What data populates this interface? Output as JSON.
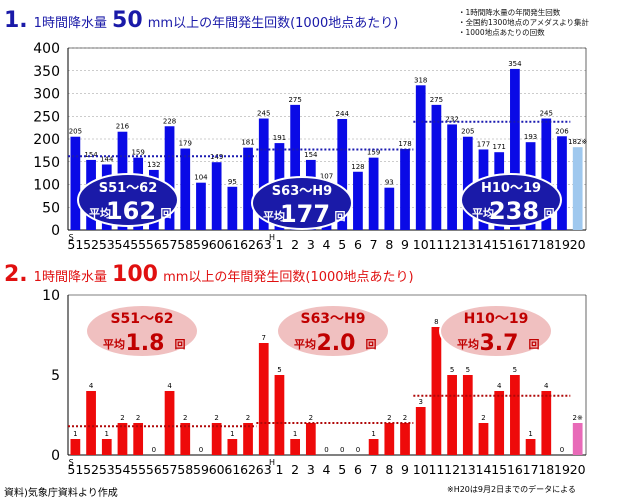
{
  "titles": {
    "chart1": {
      "num": "1.",
      "pre": "1時間降水量",
      "big": "50",
      "post": "mm以上の年間発生回数(1000地点あたり)"
    },
    "chart2": {
      "num": "2.",
      "pre": "1時間降水量",
      "big": "100",
      "post": "mm以上の年間発生回数(1000地点あたり)"
    }
  },
  "legend_notes": [
    "・1時間降水量の年間発生回数",
    "・全国約1300地点のアメダスより集計",
    "・1000地点あたりの回数"
  ],
  "source": "資料)気象庁資料より作成",
  "footnote": "※H20は9月2日までのデータによる",
  "era_marks": {
    "showa": "S",
    "heisei": "H"
  },
  "colors": {
    "chart1_bar": "#0a0ae6",
    "chart1_last": "#9fc8ee",
    "chart1_avg": "#1a1ab0",
    "chart1_bubble": "#1a1aa8",
    "chart2_bar": "#ee0a0a",
    "chart2_last": "#e86ab8",
    "chart2_avg": "#b00808",
    "chart2_bubble": "#f0c0c0"
  },
  "chart_data": [
    {
      "type": "bar",
      "title": "1時間降水量50mm以上の年間発生回数(1000地点あたり)",
      "categories": [
        "51",
        "52",
        "53",
        "54",
        "55",
        "56",
        "57",
        "58",
        "59",
        "60",
        "61",
        "62",
        "63",
        "1",
        "2",
        "3",
        "4",
        "5",
        "6",
        "7",
        "8",
        "9",
        "10",
        "11",
        "12",
        "13",
        "14",
        "15",
        "16",
        "17",
        "18",
        "19",
        "20"
      ],
      "values": [
        205,
        154,
        144,
        216,
        159,
        132,
        228,
        179,
        104,
        149,
        95,
        181,
        245,
        191,
        275,
        154,
        107,
        244,
        128,
        159,
        93,
        178,
        318,
        275,
        232,
        205,
        177,
        171,
        354,
        193,
        245,
        206,
        182
      ],
      "value_labels": [
        "205",
        "154",
        "144",
        "216",
        "159",
        "132",
        "228",
        "179",
        "104",
        "149",
        "95",
        "181",
        "245",
        "191",
        "275",
        "154",
        "107",
        "244",
        "128",
        "159",
        "93",
        "178",
        "318",
        "275",
        "232",
        "205",
        "177",
        "171",
        "354",
        "193",
        "245",
        "206",
        "182※"
      ],
      "ylim": [
        0,
        400
      ],
      "yticks": [
        "0",
        "50",
        "100",
        "150",
        "200",
        "250",
        "300",
        "350",
        "400"
      ],
      "grid": true,
      "averages": [
        {
          "period": "S51～62",
          "label": "平均",
          "value": "162",
          "unit": "回"
        },
        {
          "period": "S63～H9",
          "label": "平均",
          "value": "177",
          "unit": "回"
        },
        {
          "period": "H10～19",
          "label": "平均",
          "value": "238",
          "unit": "回"
        }
      ]
    },
    {
      "type": "bar",
      "title": "1時間降水量100mm以上の年間発生回数(1000地点あたり)",
      "categories": [
        "51",
        "52",
        "53",
        "54",
        "55",
        "56",
        "57",
        "58",
        "59",
        "60",
        "61",
        "62",
        "63",
        "1",
        "2",
        "3",
        "4",
        "5",
        "6",
        "7",
        "8",
        "9",
        "10",
        "11",
        "12",
        "13",
        "14",
        "15",
        "16",
        "17",
        "18",
        "19",
        "20"
      ],
      "values": [
        1,
        4,
        1,
        2,
        2,
        0,
        4,
        2,
        0,
        2,
        1,
        2,
        7,
        5,
        1,
        2,
        0,
        0,
        0,
        1,
        2,
        2,
        3,
        8,
        5,
        5,
        2,
        4,
        5,
        1,
        4,
        0,
        2
      ],
      "value_labels": [
        "1",
        "4",
        "1",
        "2",
        "2",
        "0",
        "4",
        "2",
        "0",
        "2",
        "1",
        "2",
        "7",
        "5",
        "1",
        "2",
        "0",
        "0",
        "0",
        "1",
        "2",
        "2",
        "3",
        "8",
        "5",
        "5",
        "2",
        "4",
        "5",
        "1",
        "4",
        "0",
        "2※"
      ],
      "ylim": [
        0,
        10
      ],
      "yticks": [
        "0",
        "5",
        "10"
      ],
      "grid": false,
      "averages": [
        {
          "period": "S51～62",
          "label": "平均",
          "value": "1.8",
          "unit": "回"
        },
        {
          "period": "S63～H9",
          "label": "平均",
          "value": "2.0",
          "unit": "回"
        },
        {
          "period": "H10～19",
          "label": "平均",
          "value": "3.7",
          "unit": "回"
        }
      ]
    }
  ]
}
